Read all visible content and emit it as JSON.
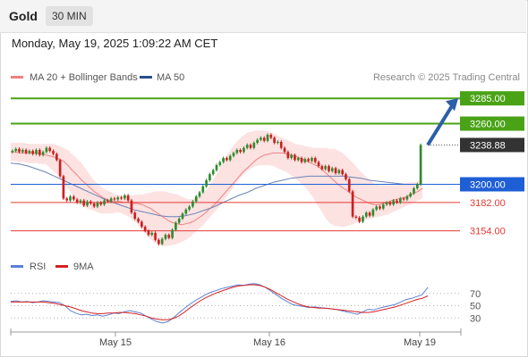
{
  "header": {
    "title": "Gold",
    "timeframe": "30 MIN",
    "timestamp": "Monday, May 19, 2025 1:09:22 AM CET"
  },
  "legend": {
    "ma20": "MA 20 + Bollinger Bands",
    "ma50": "MA 50",
    "credit": "Research © 2025 Trading Central",
    "rsi": "RSI",
    "rsi_ma": "9MA"
  },
  "colors": {
    "up_candle": "#2e8b2e",
    "down_candle": "#cc1f1f",
    "bollinger_fill": "#fde2e2",
    "ma20": "#f08080",
    "ma50": "#6b84b5",
    "resistance": "#4aa317",
    "pivot": "#1f5fd6",
    "support": "#e53935",
    "last_price": "#333333",
    "arrow": "#2c5fa8",
    "rsi": "#5b7fd6",
    "rsi_ma": "#d62020"
  },
  "chart_data": {
    "type": "candlestick",
    "ylim": [
      3136,
      3294
    ],
    "x_tick_labels": [
      "May 15",
      "May 16",
      "May 19"
    ],
    "levels": [
      {
        "label": "3285.00",
        "value": 3285,
        "role": "resistance"
      },
      {
        "label": "3260.00",
        "value": 3260,
        "role": "resistance"
      },
      {
        "label": "3238.88",
        "value": 3238.88,
        "role": "last"
      },
      {
        "label": "3200.00",
        "value": 3200,
        "role": "pivot"
      },
      {
        "label": "3182.00",
        "value": 3182,
        "role": "support"
      },
      {
        "label": "3154.00",
        "value": 3154,
        "role": "support"
      }
    ],
    "close": [
      3233,
      3235,
      3232,
      3234,
      3231,
      3233,
      3230,
      3234,
      3229,
      3232,
      3236,
      3233,
      3230,
      3224,
      3208,
      3186,
      3184,
      3188,
      3185,
      3182,
      3184,
      3179,
      3183,
      3181,
      3178,
      3182,
      3180,
      3184,
      3183,
      3186,
      3185,
      3187,
      3186,
      3189,
      3184,
      3172,
      3166,
      3163,
      3158,
      3154,
      3150,
      3152,
      3145,
      3141,
      3146,
      3150,
      3147,
      3155,
      3162,
      3166,
      3171,
      3175,
      3178,
      3183,
      3188,
      3192,
      3198,
      3204,
      3210,
      3214,
      3219,
      3222,
      3226,
      3224,
      3228,
      3231,
      3234,
      3232,
      3236,
      3239,
      3236,
      3241,
      3244,
      3246,
      3243,
      3249,
      3246,
      3241,
      3242,
      3236,
      3232,
      3226,
      3229,
      3224,
      3226,
      3222,
      3225,
      3223,
      3226,
      3222,
      3218,
      3215,
      3218,
      3213,
      3216,
      3211,
      3214,
      3210,
      3205,
      3193,
      3168,
      3167,
      3163,
      3168,
      3172,
      3169,
      3175,
      3178,
      3176,
      3180,
      3182,
      3180,
      3184,
      3182,
      3186,
      3185,
      3188,
      3191,
      3196,
      3200,
      3238.9
    ],
    "ma20": [
      3232,
      3232,
      3231,
      3231,
      3231,
      3231,
      3231,
      3230,
      3229,
      3228,
      3227,
      3225,
      3223,
      3219,
      3214,
      3210,
      3205,
      3201,
      3197,
      3193,
      3190,
      3187,
      3185,
      3183,
      3183,
      3183,
      3182,
      3182,
      3181,
      3181,
      3180,
      3178,
      3176,
      3173,
      3170,
      3167,
      3164,
      3162,
      3161,
      3160,
      3161,
      3162,
      3164,
      3167,
      3170,
      3174,
      3178,
      3182,
      3187,
      3192,
      3197,
      3202,
      3207,
      3212,
      3216,
      3220,
      3224,
      3227,
      3229,
      3230,
      3231,
      3231,
      3231,
      3230,
      3229,
      3228,
      3226,
      3224,
      3222,
      3220,
      3218,
      3215,
      3211,
      3207,
      3203,
      3199,
      3196,
      3193,
      3190,
      3187,
      3185,
      3183,
      3181,
      3180,
      3180,
      3181,
      3182,
      3184,
      3185,
      3186,
      3187,
      3189,
      3191,
      3193,
      3196
    ],
    "bb_upper": [
      3241,
      3241,
      3241,
      3241,
      3240,
      3240,
      3240,
      3240,
      3240,
      3240,
      3240,
      3238,
      3236,
      3234,
      3230,
      3226,
      3222,
      3216,
      3210,
      3204,
      3200,
      3196,
      3194,
      3192,
      3190,
      3189,
      3189,
      3189,
      3189,
      3190,
      3190,
      3191,
      3192,
      3193,
      3193,
      3193,
      3192,
      3191,
      3190,
      3188,
      3186,
      3185,
      3186,
      3188,
      3191,
      3196,
      3203,
      3210,
      3218,
      3226,
      3233,
      3239,
      3244,
      3248,
      3251,
      3252,
      3253,
      3253,
      3253,
      3252,
      3250,
      3248,
      3246,
      3244,
      3242,
      3240,
      3239,
      3238,
      3237,
      3236,
      3236,
      3236,
      3236,
      3235,
      3235,
      3233,
      3230,
      3226,
      3222,
      3217,
      3212,
      3208,
      3204,
      3201,
      3199,
      3199,
      3199,
      3199,
      3199,
      3200,
      3201,
      3202,
      3202,
      3203,
      3204
    ],
    "bb_lower": [
      3223,
      3223,
      3222,
      3222,
      3221,
      3221,
      3221,
      3220,
      3220,
      3216,
      3212,
      3208,
      3202,
      3196,
      3190,
      3185,
      3180,
      3177,
      3175,
      3174,
      3172,
      3171,
      3171,
      3171,
      3172,
      3172,
      3170,
      3168,
      3164,
      3160,
      3155,
      3150,
      3145,
      3142,
      3140,
      3139,
      3139,
      3140,
      3141,
      3143,
      3145,
      3148,
      3152,
      3156,
      3160,
      3165,
      3170,
      3175,
      3180,
      3186,
      3192,
      3198,
      3204,
      3209,
      3213,
      3216,
      3218,
      3219,
      3219,
      3219,
      3218,
      3216,
      3214,
      3212,
      3209,
      3206,
      3202,
      3198,
      3193,
      3187,
      3180,
      3173,
      3166,
      3161,
      3159,
      3158,
      3158,
      3159,
      3160,
      3162,
      3164,
      3165,
      3166,
      3167,
      3168,
      3169,
      3170,
      3172,
      3174,
      3176,
      3178,
      3180,
      3182,
      3184,
      3186
    ],
    "ma50": [
      3221,
      3220,
      3218,
      3215,
      3212,
      3208,
      3204,
      3200,
      3196,
      3192,
      3188,
      3184,
      3181,
      3178,
      3175,
      3173,
      3171,
      3169,
      3168,
      3168,
      3169,
      3171,
      3174,
      3177,
      3181,
      3185,
      3189,
      3192,
      3196,
      3199,
      3202,
      3204,
      3206,
      3207,
      3208,
      3208,
      3208,
      3208,
      3208,
      3207,
      3206,
      3204,
      3203,
      3202,
      3201,
      3200,
      3200,
      3200
    ],
    "rsi": [
      57,
      58,
      56,
      57,
      55,
      56,
      58,
      57,
      56,
      55,
      50,
      42,
      38,
      35,
      36,
      34,
      35,
      33,
      35,
      38,
      37,
      40,
      42,
      40,
      38,
      33,
      28,
      24,
      22,
      24,
      30,
      38,
      45,
      52,
      58,
      63,
      68,
      72,
      75,
      78,
      80,
      82,
      84,
      83,
      85,
      86,
      84,
      80,
      74,
      68,
      62,
      57,
      52,
      50,
      49,
      47,
      48,
      47,
      46,
      45,
      44,
      42,
      40,
      38,
      36,
      40,
      44,
      43,
      46,
      48,
      50,
      52,
      56,
      60,
      62,
      65,
      68,
      80
    ],
    "rsi_ma": [
      56,
      56,
      56,
      56,
      56,
      56,
      56,
      55,
      54,
      52,
      50,
      48,
      45,
      42,
      40,
      38,
      37,
      37,
      38,
      38,
      39,
      39,
      38,
      37,
      35,
      33,
      30,
      28,
      27,
      27,
      29,
      33,
      39,
      46,
      52,
      58,
      63,
      67,
      71,
      74,
      77,
      80,
      82,
      83,
      84,
      84,
      83,
      80,
      76,
      71,
      66,
      61,
      57,
      53,
      50,
      48,
      47,
      46,
      46,
      45,
      44,
      43,
      42,
      41,
      40,
      39,
      39,
      40,
      42,
      44,
      46,
      48,
      51,
      54,
      57,
      60,
      62,
      66
    ],
    "rsi_levels": [
      70,
      50,
      30
    ],
    "rsi_ylim": [
      10,
      90
    ]
  }
}
